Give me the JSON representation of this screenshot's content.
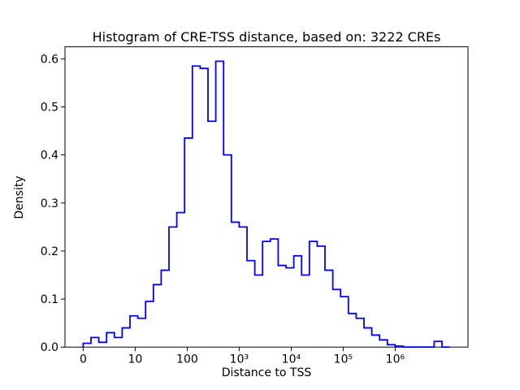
{
  "figure": {
    "background": "#ffffff"
  },
  "chart_data": {
    "type": "histogram_step",
    "title": "Histogram of CRE-TSS distance, based on: 3222 CREs",
    "xlabel": "Distance to TSS",
    "ylabel": "Density",
    "line_color": "#0000ff",
    "axis_color": "#000000",
    "x_scale": "symlog-decades",
    "x_unit_note": "u = decade position on axis; tick u=0 is '0', u=1 is 10, u=2 is 100, etc.",
    "xlim_u": [
      -0.35,
      7.4
    ],
    "ylim": [
      0,
      0.625
    ],
    "grid": false,
    "legend": null,
    "x_ticks": [
      {
        "u": 0,
        "label": "0"
      },
      {
        "u": 1,
        "label": "10"
      },
      {
        "u": 2,
        "label": "100"
      },
      {
        "u": 3,
        "label": "10³"
      },
      {
        "u": 4,
        "label": "10⁴"
      },
      {
        "u": 5,
        "label": "10⁵"
      },
      {
        "u": 6,
        "label": "10⁶"
      }
    ],
    "y_ticks": [
      {
        "value": 0.0,
        "label": "0.0"
      },
      {
        "value": 0.1,
        "label": "0.1"
      },
      {
        "value": 0.2,
        "label": "0.2"
      },
      {
        "value": 0.3,
        "label": "0.3"
      },
      {
        "value": 0.4,
        "label": "0.4"
      },
      {
        "value": 0.5,
        "label": "0.5"
      },
      {
        "value": 0.6,
        "label": "0.6"
      }
    ],
    "bin_edges_u": [
      0.0,
      0.15,
      0.3,
      0.45,
      0.6,
      0.75,
      0.9,
      1.05,
      1.2,
      1.35,
      1.5,
      1.65,
      1.8,
      1.95,
      2.1,
      2.25,
      2.4,
      2.55,
      2.7,
      2.85,
      3.0,
      3.15,
      3.3,
      3.45,
      3.6,
      3.75,
      3.9,
      4.05,
      4.2,
      4.35,
      4.5,
      4.65,
      4.8,
      4.95,
      5.1,
      5.25,
      5.4,
      5.55,
      5.7,
      5.85,
      6.0,
      6.15,
      6.3,
      6.45,
      6.6,
      6.75,
      6.9,
      7.05
    ],
    "densities": [
      0.008,
      0.02,
      0.01,
      0.03,
      0.02,
      0.04,
      0.065,
      0.06,
      0.095,
      0.13,
      0.16,
      0.25,
      0.28,
      0.435,
      0.585,
      0.58,
      0.47,
      0.595,
      0.4,
      0.26,
      0.25,
      0.18,
      0.15,
      0.22,
      0.225,
      0.17,
      0.165,
      0.19,
      0.15,
      0.22,
      0.21,
      0.16,
      0.12,
      0.105,
      0.07,
      0.06,
      0.04,
      0.025,
      0.015,
      0.005,
      0.002,
      0,
      0,
      0,
      0,
      0.012,
      0
    ]
  }
}
